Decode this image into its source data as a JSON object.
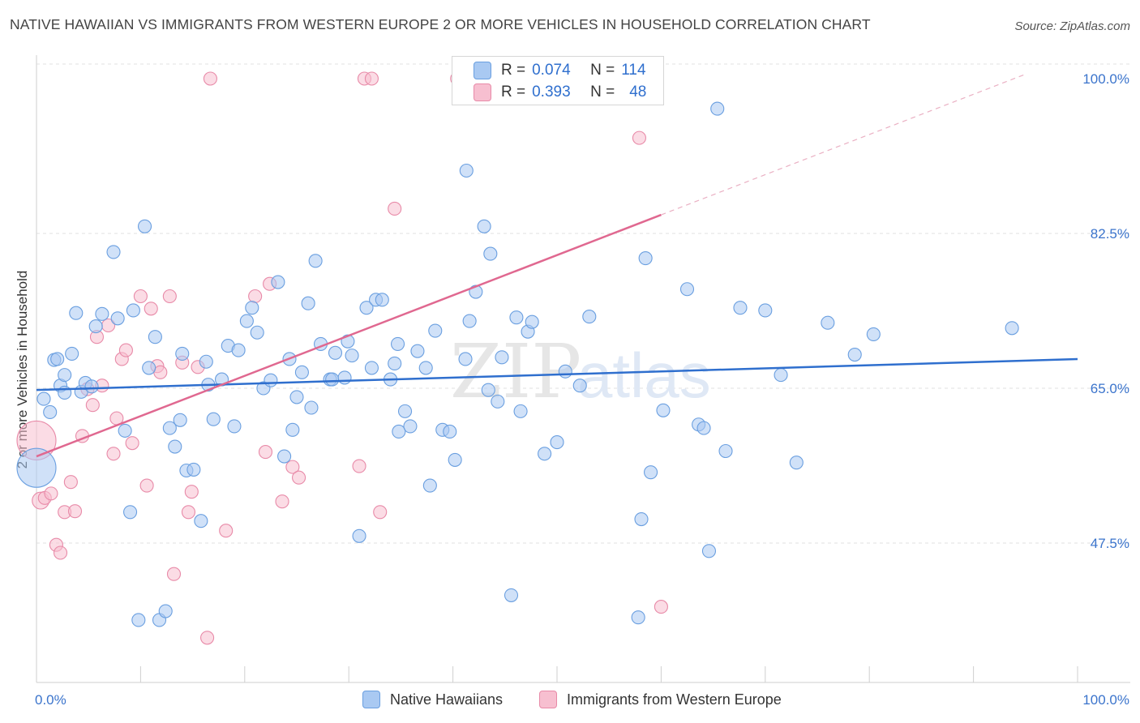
{
  "title": "NATIVE HAWAIIAN VS IMMIGRANTS FROM WESTERN EUROPE 2 OR MORE VEHICLES IN HOUSEHOLD CORRELATION CHART",
  "source": "Source: ZipAtlas.com",
  "watermark": {
    "zip": "ZIP",
    "atlas": "atlas"
  },
  "stats": [
    {
      "r_label": "R =",
      "r_value": "0.074",
      "n_label": "N =",
      "n_value": "114",
      "color": "#a9c9f2",
      "border": "#6a9fe0"
    },
    {
      "r_label": "R =",
      "r_value": "0.393",
      "n_label": "N =",
      "n_value": "48",
      "color": "#f7bfd0",
      "border": "#e88aa8"
    }
  ],
  "legend": [
    {
      "label": "Native Hawaiians",
      "color": "#a9c9f2",
      "border": "#6a9fe0"
    },
    {
      "label": "Immigrants from Western Europe",
      "color": "#f7bfd0",
      "border": "#e88aa8"
    }
  ],
  "chart_data": {
    "type": "scatter",
    "ylabel": "2 or more Vehicles in Household",
    "xlim": [
      0,
      100
    ],
    "ylim": [
      32,
      102
    ],
    "x_tick_labels": [
      "0.0%",
      "100.0%"
    ],
    "y_tick_labels": [
      "100.0%",
      "82.5%",
      "65.0%",
      "47.5%"
    ],
    "y_ticks": [
      100,
      82.5,
      65,
      47.5
    ],
    "grid": true,
    "colors": {
      "blue_fill": "#a9c9f2",
      "blue_stroke": "#6a9fe0",
      "blue_line": "#2f6fce",
      "pink_fill": "#f7bfd0",
      "pink_stroke": "#e88aa8",
      "pink_line": "#e06890"
    },
    "series": [
      {
        "name": "Native Hawaiians",
        "trend": {
          "x0": 0,
          "y0": 64.8,
          "x1": 100,
          "y1": 68.3
        },
        "points": [
          [
            0,
            56,
            3
          ],
          [
            0.7,
            63.8,
            1
          ],
          [
            1.3,
            62.3,
            1
          ],
          [
            1.7,
            68.2,
            1
          ],
          [
            2,
            68.3,
            1
          ],
          [
            2.3,
            65.3,
            1
          ],
          [
            2.7,
            64.5,
            1
          ],
          [
            2.7,
            66.5,
            1
          ],
          [
            3.4,
            68.9,
            1
          ],
          [
            3.8,
            73.5,
            1
          ],
          [
            4.3,
            64.6,
            1
          ],
          [
            4.7,
            65.6,
            1
          ],
          [
            5.3,
            65.2,
            1
          ],
          [
            5.7,
            72,
            1
          ],
          [
            6.3,
            73.4,
            1
          ],
          [
            7.4,
            80.4,
            1
          ],
          [
            7.8,
            72.9,
            1
          ],
          [
            8.5,
            60.2,
            1
          ],
          [
            9,
            51,
            1
          ],
          [
            9.3,
            73.8,
            1
          ],
          [
            9.8,
            38.8,
            1
          ],
          [
            10.4,
            83.3,
            1
          ],
          [
            10.8,
            67.3,
            1
          ],
          [
            11.4,
            70.8,
            1
          ],
          [
            11.8,
            38.8,
            1
          ],
          [
            12.4,
            39.8,
            1
          ],
          [
            12.8,
            60.5,
            1
          ],
          [
            13.3,
            58.4,
            1
          ],
          [
            13.8,
            61.4,
            1
          ],
          [
            14,
            68.9,
            1
          ],
          [
            14.4,
            55.7,
            1
          ],
          [
            15.1,
            55.8,
            1
          ],
          [
            15.8,
            50,
            1
          ],
          [
            16.3,
            68,
            1
          ],
          [
            16.5,
            65.4,
            1
          ],
          [
            17,
            61.5,
            1
          ],
          [
            17.8,
            66,
            1
          ],
          [
            18.4,
            69.8,
            1
          ],
          [
            19,
            60.7,
            1
          ],
          [
            19.4,
            69.3,
            1
          ],
          [
            20.2,
            72.6,
            1
          ],
          [
            20.7,
            74.1,
            1
          ],
          [
            21.2,
            71.3,
            1
          ],
          [
            21.8,
            65,
            1
          ],
          [
            22.5,
            65.9,
            1
          ],
          [
            23.2,
            77,
            1
          ],
          [
            23.8,
            57.3,
            1
          ],
          [
            24.3,
            68.3,
            1
          ],
          [
            24.6,
            60.3,
            1
          ],
          [
            25,
            64,
            1
          ],
          [
            25.5,
            66.8,
            1
          ],
          [
            26.1,
            74.6,
            1
          ],
          [
            26.4,
            62.8,
            1
          ],
          [
            26.8,
            79.4,
            1
          ],
          [
            27.3,
            70,
            1
          ],
          [
            28.2,
            66,
            1
          ],
          [
            28.4,
            66,
            1
          ],
          [
            28.7,
            69,
            1
          ],
          [
            29.6,
            66.2,
            1
          ],
          [
            29.9,
            70.3,
            1
          ],
          [
            30.3,
            68.7,
            1
          ],
          [
            31,
            48.3,
            1
          ],
          [
            31.7,
            74.1,
            1
          ],
          [
            32.2,
            67.3,
            1
          ],
          [
            32.6,
            75,
            1
          ],
          [
            33.2,
            75,
            1
          ],
          [
            34,
            66,
            1
          ],
          [
            34.4,
            67.8,
            1
          ],
          [
            34.7,
            70,
            1
          ],
          [
            34.8,
            60.1,
            1
          ],
          [
            35.4,
            62.4,
            1
          ],
          [
            35.9,
            60.7,
            1
          ],
          [
            36.6,
            69.2,
            1
          ],
          [
            37.4,
            67.3,
            1
          ],
          [
            37.8,
            54,
            1
          ],
          [
            38.3,
            71.5,
            1
          ],
          [
            39,
            60.3,
            1
          ],
          [
            39.7,
            60.1,
            1
          ],
          [
            40.2,
            56.9,
            1
          ],
          [
            41.2,
            68.3,
            1
          ],
          [
            41.3,
            89.6,
            1
          ],
          [
            41.6,
            72.6,
            1
          ],
          [
            42.2,
            75.9,
            1
          ],
          [
            43,
            83.3,
            1
          ],
          [
            43.4,
            64.8,
            1
          ],
          [
            43.6,
            80.2,
            1
          ],
          [
            44.3,
            63.5,
            1
          ],
          [
            44.7,
            68.5,
            1
          ],
          [
            45.6,
            41.6,
            1
          ],
          [
            46.1,
            73,
            1
          ],
          [
            46.5,
            62.4,
            1
          ],
          [
            47.2,
            71.4,
            1
          ],
          [
            47.6,
            72.5,
            1
          ],
          [
            48.8,
            57.6,
            1
          ],
          [
            50,
            58.9,
            1
          ],
          [
            50.8,
            66.9,
            1
          ],
          [
            52.2,
            65.3,
            1
          ],
          [
            53.1,
            73.1,
            1
          ],
          [
            57.8,
            39.1,
            1
          ],
          [
            58.1,
            50.2,
            1
          ],
          [
            58.5,
            79.7,
            1
          ],
          [
            59,
            55.5,
            1
          ],
          [
            60.2,
            62.5,
            1
          ],
          [
            62.5,
            76.2,
            1
          ],
          [
            63.6,
            60.9,
            1
          ],
          [
            64.1,
            60.5,
            1
          ],
          [
            64.6,
            46.6,
            1
          ],
          [
            65.4,
            96.6,
            1
          ],
          [
            66.2,
            57.9,
            1
          ],
          [
            67.6,
            74.1,
            1
          ],
          [
            70,
            73.8,
            1
          ],
          [
            71.5,
            66.5,
            1
          ],
          [
            73,
            56.6,
            1
          ],
          [
            76,
            72.4,
            1
          ],
          [
            78.6,
            68.8,
            1
          ],
          [
            80.4,
            71.1,
            1
          ],
          [
            93.7,
            71.8,
            1
          ]
        ]
      },
      {
        "name": "Immigrants from Western Europe",
        "trend": {
          "x0": 0,
          "y0": 57.3,
          "x1": 60,
          "y1": 84.6,
          "dash_x1": 95,
          "dash_y1": 100.5
        },
        "points": [
          [
            0,
            59.1,
            3
          ],
          [
            0.4,
            52.3,
            1.3
          ],
          [
            0.8,
            52.6,
            1
          ],
          [
            1.4,
            53.1,
            1
          ],
          [
            1.9,
            47.3,
            1
          ],
          [
            2.3,
            46.4,
            1
          ],
          [
            2.7,
            51,
            1
          ],
          [
            3.3,
            54.4,
            1
          ],
          [
            3.7,
            51.1,
            1
          ],
          [
            4.4,
            59.6,
            1
          ],
          [
            4.9,
            64.9,
            1
          ],
          [
            5.4,
            63.1,
            1
          ],
          [
            5.8,
            70.8,
            1
          ],
          [
            6.3,
            65.3,
            1
          ],
          [
            6.9,
            72.1,
            1
          ],
          [
            7.4,
            57.6,
            1
          ],
          [
            7.7,
            61.6,
            1
          ],
          [
            8.2,
            68.3,
            1
          ],
          [
            8.6,
            69.3,
            1
          ],
          [
            9.2,
            58.8,
            1
          ],
          [
            10,
            75.4,
            1
          ],
          [
            10.6,
            54,
            1
          ],
          [
            11,
            74,
            1
          ],
          [
            11.6,
            67.5,
            1
          ],
          [
            11.9,
            66.8,
            1
          ],
          [
            12.8,
            75.4,
            1
          ],
          [
            13.2,
            44,
            1
          ],
          [
            14,
            67.9,
            1
          ],
          [
            14.6,
            51,
            1
          ],
          [
            14.9,
            53.3,
            1
          ],
          [
            15.5,
            67.4,
            1
          ],
          [
            16.4,
            36.8,
            1
          ],
          [
            16.7,
            100,
            1
          ],
          [
            18.2,
            48.9,
            1
          ],
          [
            21,
            75.4,
            1
          ],
          [
            22,
            57.8,
            1
          ],
          [
            22.4,
            76.8,
            1
          ],
          [
            23.6,
            52.2,
            1
          ],
          [
            24.6,
            56.1,
            1
          ],
          [
            25.2,
            54.9,
            1
          ],
          [
            31,
            56.2,
            1
          ],
          [
            31.5,
            100,
            1
          ],
          [
            32.2,
            100,
            1
          ],
          [
            33,
            51,
            1
          ],
          [
            34.4,
            85.3,
            1
          ],
          [
            40.4,
            100,
            1
          ],
          [
            57.9,
            93.3,
            1
          ],
          [
            60,
            40.3,
            1
          ]
        ]
      }
    ]
  }
}
